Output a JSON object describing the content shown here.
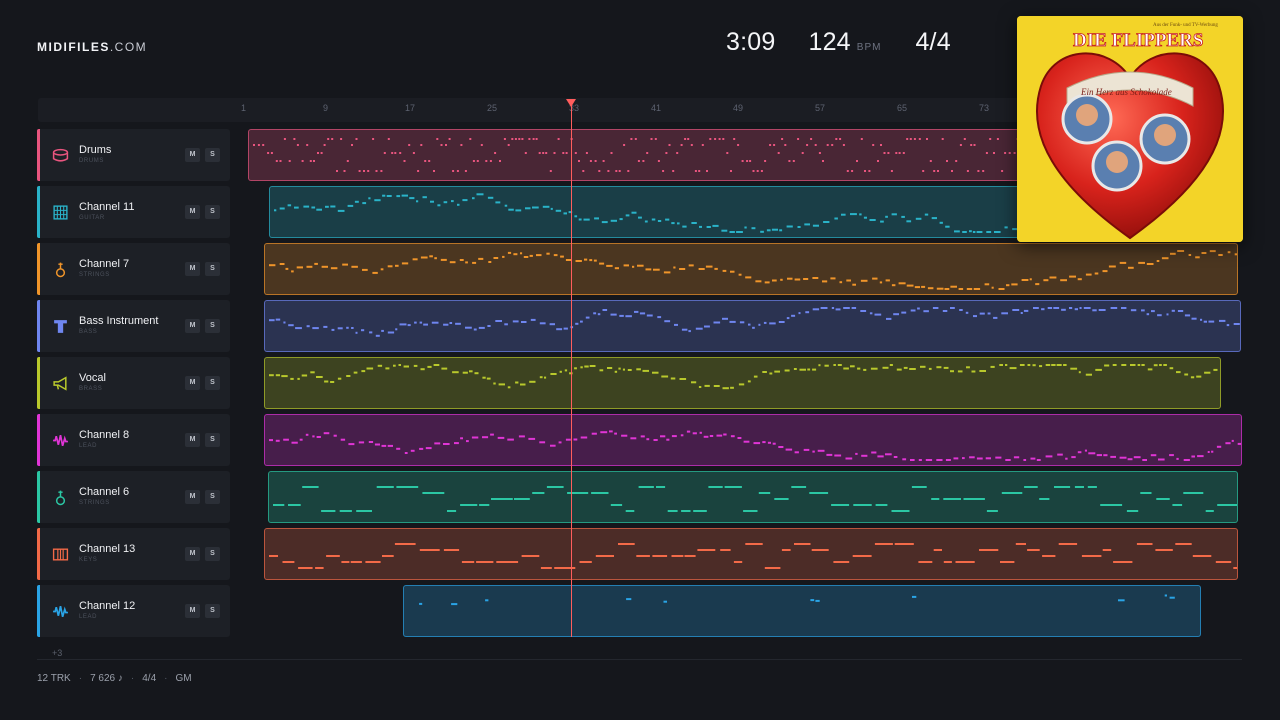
{
  "brand": {
    "bold": "MIDIFILES",
    "light": ".COM"
  },
  "stats": {
    "time": "3:09",
    "bpm": "124",
    "bpm_label": "BPM",
    "signature": "4/4"
  },
  "ruler": {
    "bars": [
      "1",
      "9",
      "17",
      "25",
      "33",
      "41",
      "49",
      "57",
      "65",
      "73"
    ]
  },
  "playhead_bar": 33,
  "album": {
    "band": "DIE FLIPPERS",
    "subtitle": "Ein Herz aus Schokolade",
    "top_note": "Aus der Funk- und TV-Werbung"
  },
  "tracks": [
    {
      "name": "Drums",
      "category": "DRUMS",
      "color": "#e9557f",
      "icon": "drum-icon",
      "mute": "M",
      "solo": "S"
    },
    {
      "name": "Channel 11",
      "category": "GUITAR",
      "color": "#2ab3c9",
      "icon": "guitar-fretboard-icon",
      "mute": "M",
      "solo": "S"
    },
    {
      "name": "Channel 7",
      "category": "STRINGS",
      "color": "#f0952a",
      "icon": "violin-icon",
      "mute": "M",
      "solo": "S"
    },
    {
      "name": "Bass Instrument",
      "category": "BASS",
      "color": "#6f86f0",
      "icon": "bass-icon",
      "mute": "M",
      "solo": "S"
    },
    {
      "name": "Vocal",
      "category": "BRASS",
      "color": "#b9c92c",
      "icon": "horn-icon",
      "mute": "M",
      "solo": "S"
    },
    {
      "name": "Channel 8",
      "category": "LEAD",
      "color": "#e035d6",
      "icon": "waveform-icon",
      "mute": "M",
      "solo": "S"
    },
    {
      "name": "Channel 6",
      "category": "STRINGS",
      "color": "#2bc7a4",
      "icon": "violin-icon",
      "mute": "M",
      "solo": "S"
    },
    {
      "name": "Channel 13",
      "category": "KEYS",
      "color": "#f36a48",
      "icon": "piano-keys-icon",
      "mute": "M",
      "solo": "S"
    },
    {
      "name": "Channel 12",
      "category": "LEAD",
      "color": "#2aa4e6",
      "icon": "waveform-icon",
      "mute": "M",
      "solo": "S"
    }
  ],
  "more_tracks": "+3",
  "footer": {
    "tracks": "12 TRK",
    "notes": "7 626 ♪",
    "signature": "4/4",
    "standard": "GM"
  }
}
